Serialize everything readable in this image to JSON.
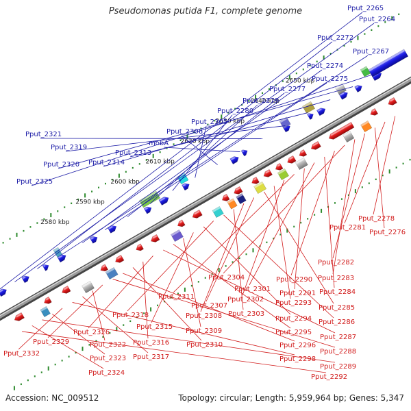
{
  "title": "Pseudomonas putida F1, complete genome",
  "footer": {
    "accession": "Accession: NC_009512",
    "summary": "Topology: circular; Length: 5,959,964 bp; Genes: 5,347"
  },
  "colors": {
    "top_label": "#1a1aa6",
    "bottom_label": "#d11a1a",
    "axis": "#7a7a7a",
    "tick": "#2e8b2e",
    "forward_gene": "#1a1ae0",
    "reverse_gene": "#e01a1a"
  },
  "scale_labels": [
    {
      "text": "2580 kbp",
      "kbp": 2580
    },
    {
      "text": "2590 kbp",
      "kbp": 2590
    },
    {
      "text": "2600 kbp",
      "kbp": 2600
    },
    {
      "text": "2610 kbp",
      "kbp": 2610
    },
    {
      "text": "2620 kbp",
      "kbp": 2620
    },
    {
      "text": "2630 kbp",
      "kbp": 2630
    },
    {
      "text": "2640 kbp",
      "kbp": 2640
    },
    {
      "text": "2650 kbp",
      "kbp": 2650
    }
  ],
  "top_labels": [
    "Pput_2265",
    "Pput_2264",
    "Pput_2272",
    "Pput_2267",
    "Pput_2274",
    "Pput_2275",
    "Pput_2277",
    "Pput_2279",
    "Pput_2280",
    "Pput_2305",
    "Pput_2306",
    "mobA",
    "Pput_2321",
    "Pput_2319",
    "Pput_2313",
    "Pput_2314",
    "Pput_2320",
    "Pput_2325"
  ],
  "bottom_labels": [
    "Pput_2278",
    "Pput_2281",
    "Pput_2276",
    "Pput_2282",
    "Pput_2283",
    "Pput_2304",
    "Pput_2290",
    "Pput_2284",
    "Pput_2301",
    "Pput_2291",
    "Pput_2311",
    "Pput_2302",
    "Pput_2293",
    "Pput_2285",
    "Pput_2307",
    "Pput_2308",
    "Pput_2303",
    "Pput_2286",
    "Pput_2318",
    "Pput_2294",
    "Pput_2315",
    "Pput_2309",
    "Pput_2295",
    "Pput_2287",
    "Pput_2326",
    "Pput_2316",
    "Pput_2310",
    "Pput_2296",
    "Pput_2288",
    "Pput_2329",
    "Pput_2322",
    "Pput_2317",
    "Pput_2298",
    "Pput_2332",
    "Pput_2323",
    "Pput_2289",
    "Pput_2324",
    "Pput_2292"
  ]
}
